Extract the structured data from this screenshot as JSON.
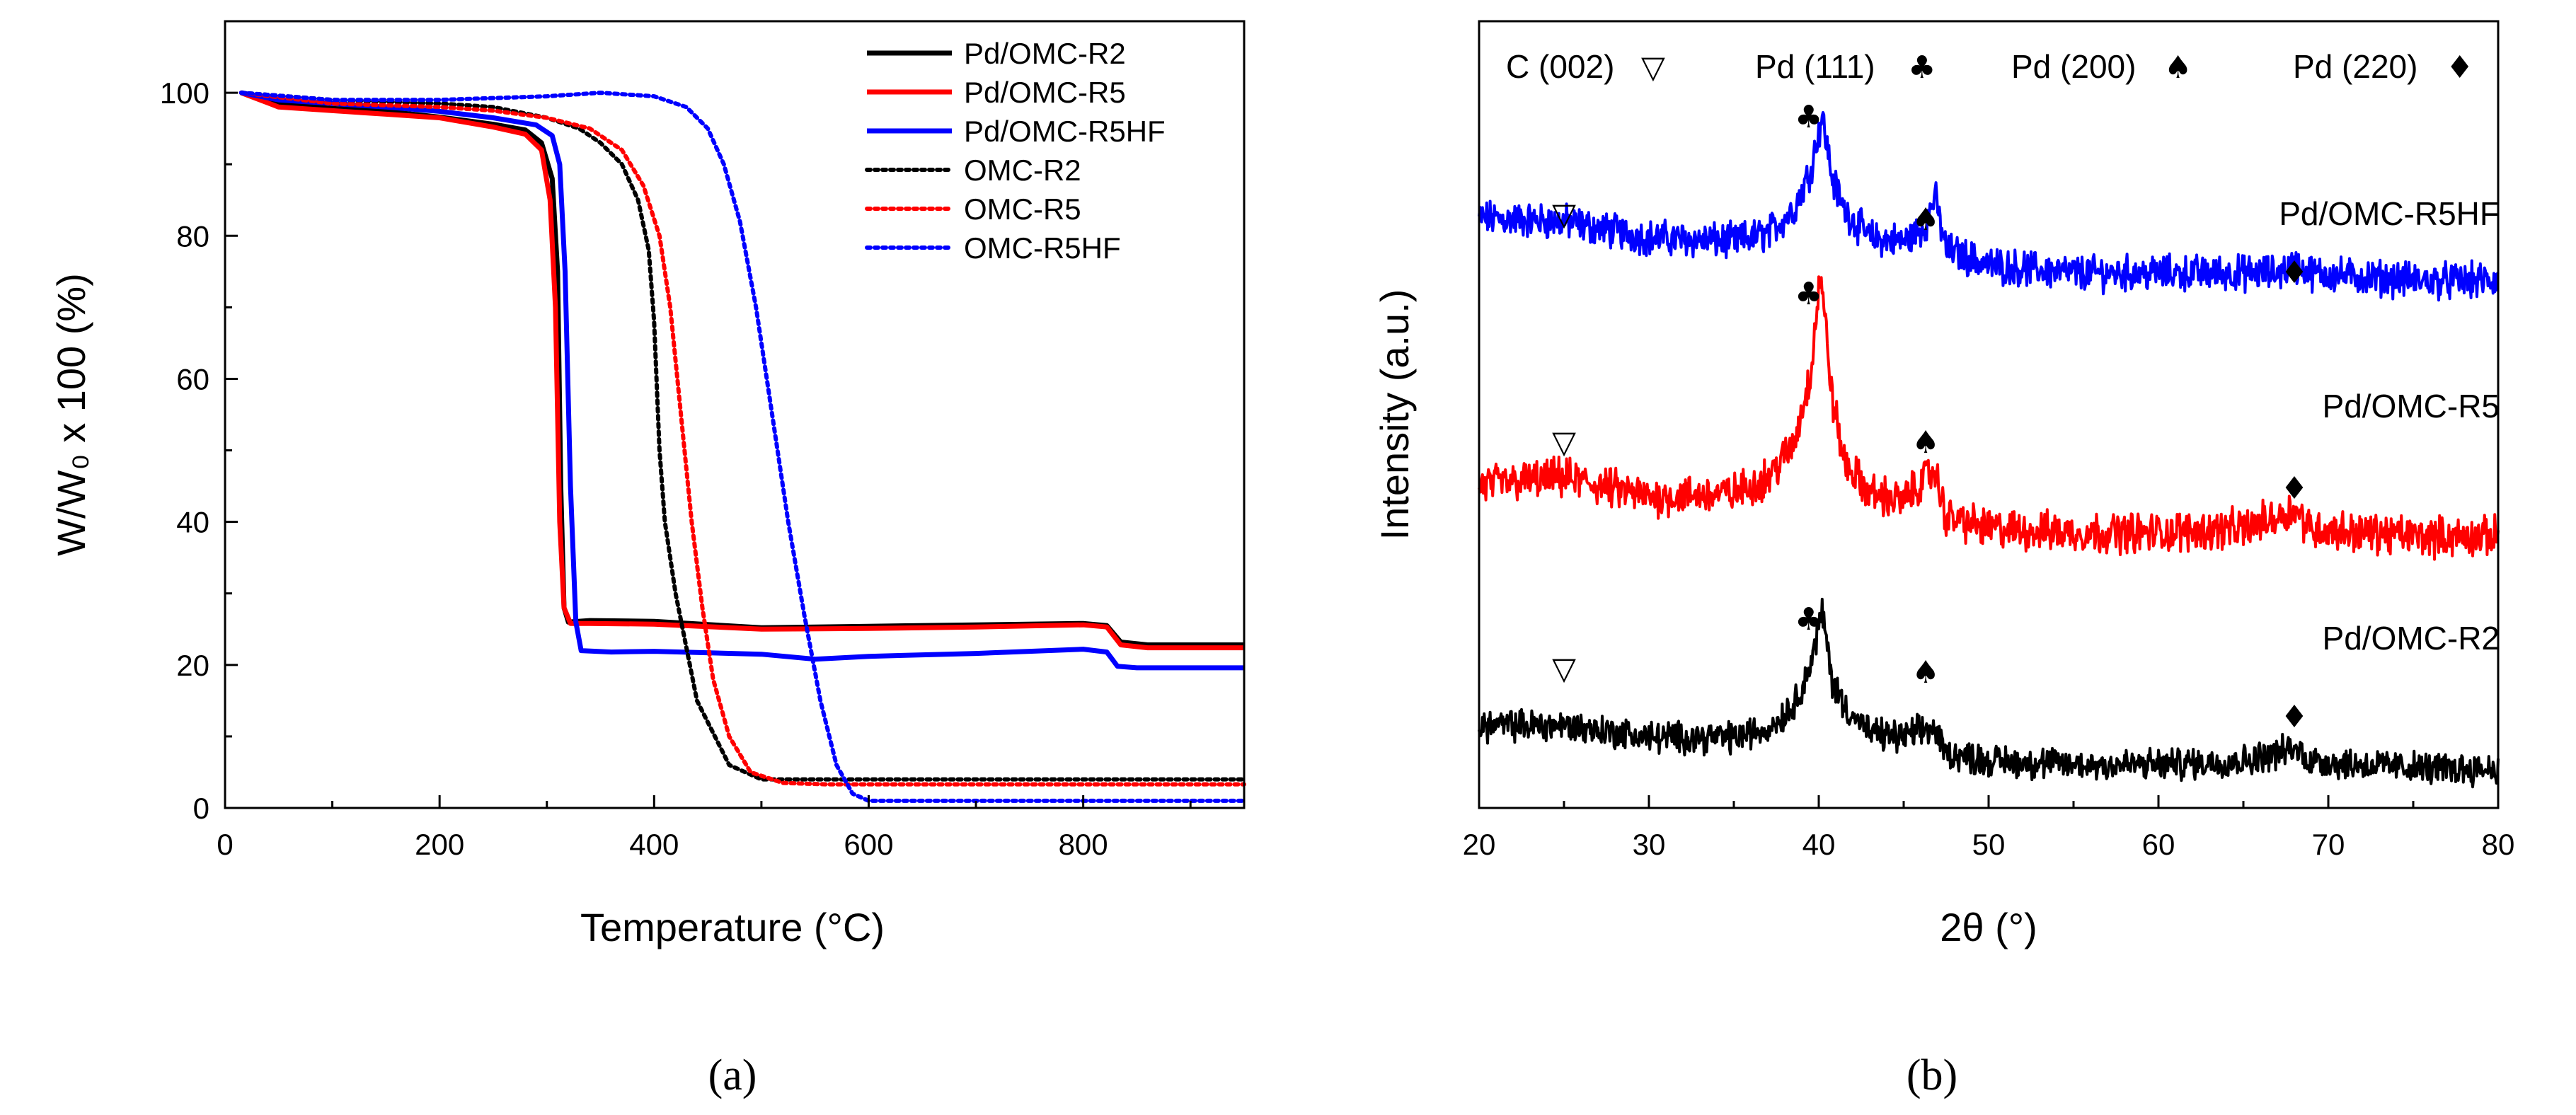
{
  "chart_data": [
    {
      "type": "line",
      "panel_label": "(a)",
      "xlabel": "Temperature (°C)",
      "ylabel": "W/W₀ x 100 (%)",
      "xlim": [
        0,
        950
      ],
      "ylim": [
        0,
        110
      ],
      "xticks": [
        0,
        200,
        400,
        600,
        800
      ],
      "yticks": [
        0,
        20,
        40,
        60,
        80,
        100
      ],
      "legend_position": "top-right",
      "series": [
        {
          "name": "Pd/OMC-R2",
          "color": "#000000",
          "style": "solid",
          "x": [
            15,
            50,
            100,
            150,
            200,
            250,
            280,
            295,
            305,
            310,
            313,
            316,
            320,
            340,
            400,
            500,
            600,
            700,
            800,
            822,
            835,
            860,
            950
          ],
          "y": [
            100,
            98.5,
            97.8,
            97.4,
            96.6,
            95.6,
            94.8,
            93,
            88,
            75,
            45,
            28,
            26,
            26.2,
            26.1,
            25.2,
            25.4,
            25.6,
            25.8,
            25.5,
            23.2,
            22.8,
            22.8
          ]
        },
        {
          "name": "Pd/OMC-R5",
          "color": "#ff0000",
          "style": "solid",
          "x": [
            15,
            50,
            100,
            150,
            200,
            250,
            280,
            295,
            303,
            308,
            312,
            316,
            322,
            340,
            400,
            500,
            600,
            700,
            800,
            822,
            835,
            860,
            950
          ],
          "y": [
            100,
            98,
            97.5,
            97,
            96.5,
            95.2,
            94.2,
            92,
            85,
            70,
            40,
            28,
            25.8,
            25.8,
            25.7,
            25,
            25.1,
            25.3,
            25.6,
            25.3,
            22.8,
            22.4,
            22.4
          ]
        },
        {
          "name": "Pd/OMC-R5HF",
          "color": "#0000ff",
          "style": "solid",
          "x": [
            15,
            50,
            100,
            150,
            200,
            250,
            290,
            305,
            312,
            317,
            322,
            327,
            332,
            360,
            400,
            500,
            550,
            600,
            700,
            800,
            822,
            832,
            850,
            950
          ],
          "y": [
            100,
            99,
            98.5,
            98,
            97.4,
            96.5,
            95.5,
            94,
            90,
            75,
            45,
            26,
            22,
            21.8,
            21.9,
            21.5,
            20.8,
            21.2,
            21.6,
            22.2,
            21.8,
            19.8,
            19.6,
            19.6
          ]
        },
        {
          "name": "OMC-R2",
          "color": "#000000",
          "style": "dotted",
          "x": [
            15,
            100,
            200,
            250,
            300,
            330,
            350,
            370,
            385,
            395,
            400,
            405,
            410,
            420,
            440,
            470,
            500,
            600,
            700,
            800,
            950
          ],
          "y": [
            100,
            99,
            98.5,
            98,
            96.5,
            95,
            93,
            90,
            85,
            78,
            68,
            50,
            40,
            30,
            15,
            6,
            4,
            4,
            4,
            4,
            4
          ]
        },
        {
          "name": "OMC-R5",
          "color": "#ff0000",
          "style": "dotted",
          "x": [
            15,
            100,
            200,
            250,
            300,
            340,
            370,
            390,
            405,
            415,
            425,
            435,
            445,
            455,
            470,
            490,
            520,
            560,
            600,
            700,
            800,
            950
          ],
          "y": [
            100,
            98.5,
            98,
            97.5,
            96.5,
            95,
            92,
            87,
            80,
            70,
            55,
            40,
            28,
            18,
            10,
            5,
            3.5,
            3.3,
            3.3,
            3.3,
            3.3,
            3.3
          ]
        },
        {
          "name": "OMC-R5HF",
          "color": "#0000ff",
          "style": "dotted",
          "x": [
            15,
            100,
            200,
            300,
            350,
            400,
            430,
            450,
            465,
            480,
            495,
            510,
            525,
            540,
            555,
            570,
            585,
            600,
            700,
            800,
            950
          ],
          "y": [
            100,
            99,
            99,
            99.5,
            100,
            99.5,
            98,
            95,
            90,
            82,
            70,
            55,
            40,
            27,
            15,
            6,
            2,
            1,
            1,
            1,
            1
          ]
        }
      ]
    },
    {
      "type": "line",
      "panel_label": "(b)",
      "xlabel": "2θ (°)",
      "ylabel": "Intensity (a.u.)",
      "xlim": [
        20,
        80
      ],
      "ylim": [
        0,
        100
      ],
      "xticks": [
        20,
        30,
        40,
        50,
        60,
        70,
        80
      ],
      "header_annotations": [
        {
          "text": "C (002)",
          "symbol": "▽"
        },
        {
          "text": "Pd (111)",
          "symbol": "♣"
        },
        {
          "text": "Pd (200)",
          "symbol": "♠"
        },
        {
          "text": "Pd (220)",
          "symbol": "♦"
        }
      ],
      "series": [
        {
          "name": "Pd/OMC-R5HF",
          "color": "#0000ff",
          "baseline": 75,
          "noise": 1.8,
          "x": [
            20,
            25,
            30,
            35,
            37,
            38.5,
            39.5,
            40.2,
            40.8,
            41.5,
            43,
            45,
            46.3,
            46.8,
            47.5,
            50,
            55,
            60,
            65,
            67,
            68,
            69,
            72,
            76,
            80
          ],
          "y": [
            75,
            74.5,
            72.5,
            72,
            73,
            76,
            81,
            88,
            80,
            76,
            72.5,
            72,
            74,
            78,
            71,
            69,
            68,
            68,
            68,
            68,
            69,
            68,
            67.5,
            67,
            67
          ],
          "label": "Pd/OMC-R5HF",
          "markers": [
            25,
            39.4,
            46.3,
            68
          ]
        },
        {
          "name": "Pd/OMC-R5",
          "color": "#ff0000",
          "baseline": 40,
          "noise": 2.0,
          "x": [
            20,
            25,
            30,
            35,
            37,
            38.5,
            39.5,
            40.1,
            40.8,
            41.5,
            43,
            45,
            46.3,
            46.8,
            47.5,
            50,
            55,
            60,
            65,
            67,
            68,
            69,
            72,
            76,
            80
          ],
          "y": [
            41,
            42,
            39.5,
            40,
            42,
            46,
            55,
            68,
            52,
            44,
            40,
            39,
            42,
            43,
            37,
            35.5,
            35,
            35,
            35.5,
            37,
            38,
            35.5,
            35,
            34.5,
            34.5
          ],
          "label": "Pd/OMC-R5",
          "markers": [
            25,
            39.4,
            46.3,
            68
          ]
        },
        {
          "name": "Pd/OMC-R2",
          "color": "#000000",
          "baseline": 10,
          "noise": 1.6,
          "x": [
            20,
            25,
            30,
            35,
            37,
            38.5,
            39.5,
            40.2,
            40.8,
            41.5,
            43,
            45,
            46.3,
            46.8,
            47.5,
            50,
            55,
            60,
            65,
            67,
            68,
            69,
            72,
            76,
            80
          ],
          "y": [
            10.5,
            10.5,
            9,
            9,
            10,
            13,
            18,
            25,
            16,
            13,
            9.5,
            9,
            10,
            10,
            7,
            6,
            5.5,
            5.5,
            6,
            7,
            7.5,
            6,
            5.5,
            5,
            5
          ],
          "label": "Pd/OMC-R2",
          "markers": [
            25,
            39.4,
            46.3,
            68
          ]
        }
      ]
    }
  ]
}
